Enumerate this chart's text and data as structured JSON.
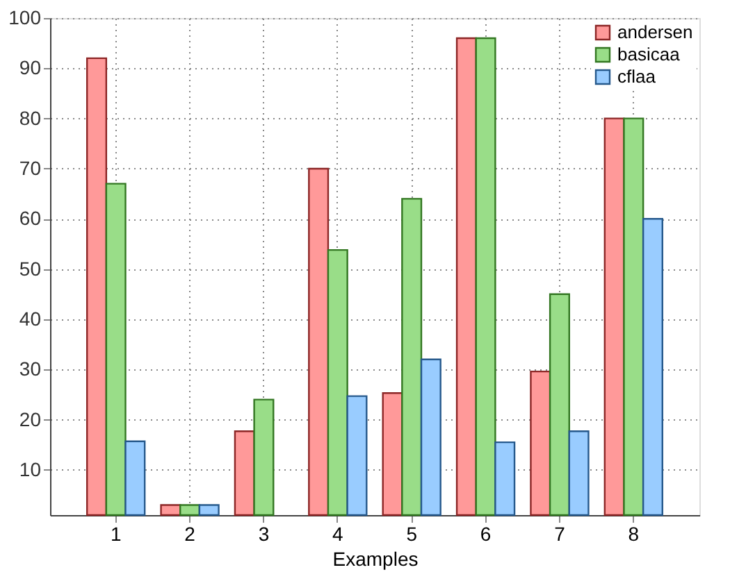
{
  "chart_data": {
    "type": "bar",
    "xlabel": "Examples",
    "categories": [
      "1",
      "2",
      "3",
      "4",
      "5",
      "6",
      "7",
      "8"
    ],
    "series": [
      {
        "name": "andersen",
        "color": "#ff9999",
        "values": [
          92,
          3,
          17.7,
          70,
          25.3,
          96,
          29.6,
          80
        ]
      },
      {
        "name": "basicaa",
        "color": "#99dd88",
        "values": [
          67,
          3,
          24,
          53.8,
          64,
          96,
          45,
          80
        ]
      },
      {
        "name": "cflaa",
        "color": "#99ccff",
        "values": [
          15.7,
          3,
          null,
          24.7,
          32,
          15.5,
          17.7,
          60
        ]
      }
    ],
    "ylim": [
      1,
      100
    ],
    "yticks": [
      10,
      20,
      30,
      40,
      50,
      60,
      70,
      80,
      90,
      100
    ],
    "grid": true,
    "legend": "top right"
  }
}
